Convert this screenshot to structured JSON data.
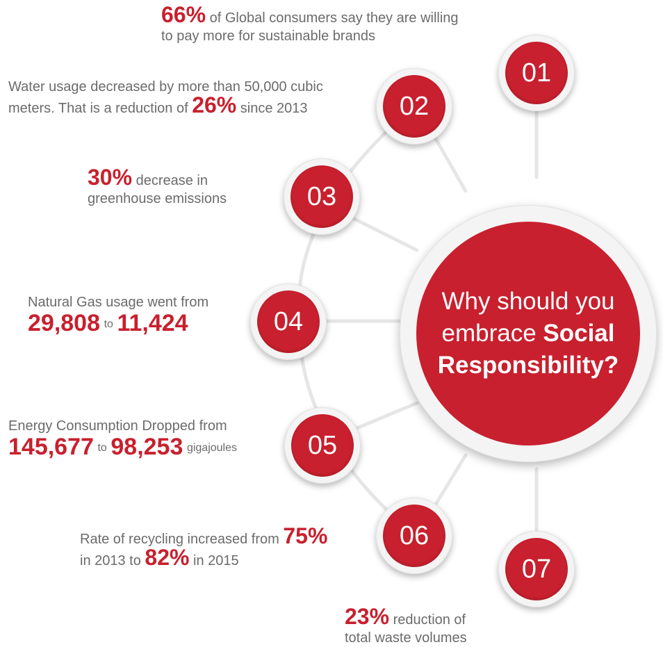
{
  "hub": {
    "line1": "Why should you",
    "line2_plain": "embrace",
    "line2_bold": "Social",
    "line3": "Responsibility?"
  },
  "nodes": [
    "01",
    "02",
    "03",
    "04",
    "05",
    "06",
    "07"
  ],
  "facts": {
    "f01": {
      "pct": "66%",
      "text1": " of Global consumers say they are willing",
      "text2": "to pay more for sustainable brands"
    },
    "f02": {
      "text1": "Water usage decreased by more than 50,000 cubic",
      "text2_pre": "meters. That is a reduction of ",
      "pct": "26%",
      "text2_post": " since 2013"
    },
    "f03": {
      "pct": "30%",
      "text1": " decrease in",
      "text2": "greenhouse emissions"
    },
    "f04": {
      "text1": "Natural Gas usage went from",
      "from": "29,808",
      "to": "to",
      "value": "11,424"
    },
    "f05": {
      "text1": "Energy Consumption Dropped from",
      "from": "145,677",
      "to": "to",
      "value": "98,253",
      "unit": "gigajoules"
    },
    "f06": {
      "text1_pre": "Rate of recycling increased from ",
      "pct1": "75%",
      "text2_pre": "in 2013 to ",
      "pct2": "82%",
      "text2_post": " in 2015"
    },
    "f07": {
      "pct": "23%",
      "text1": " reduction of",
      "text2": "total waste volumes"
    }
  },
  "colors": {
    "accent": "#c8202e",
    "text": "#6b6b6b",
    "ring": "#f4f4f4",
    "line": "#e4e4e4"
  }
}
